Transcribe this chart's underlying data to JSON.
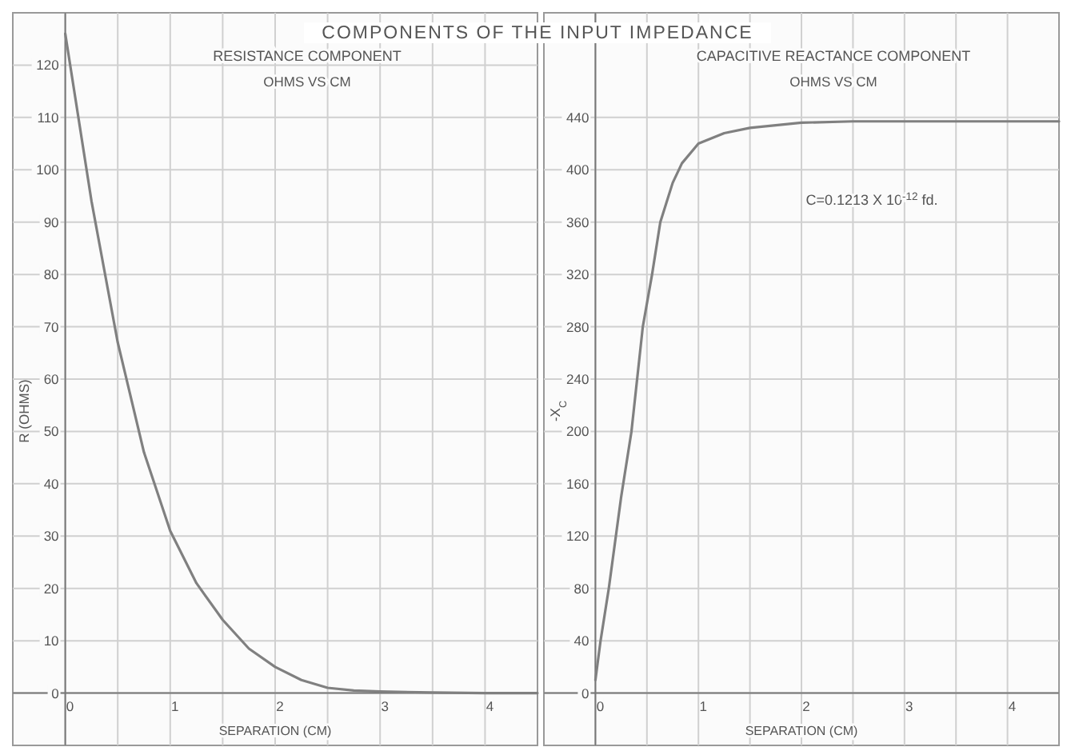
{
  "chart_data": [
    {
      "type": "line",
      "title": "RESISTANCE COMPONENT",
      "subtitle": "OHMS VS CM",
      "xlabel": "SEPARATION (CM)",
      "ylabel": "R (OHMS)",
      "annotations": [
        "COMPONENTS OF THE INPUT IMPEDANCE"
      ],
      "x": [
        0,
        0.25,
        0.5,
        0.75,
        1,
        1.25,
        1.5,
        1.75,
        2,
        2.25,
        2.5,
        2.75,
        3,
        3.5,
        4,
        4.5
      ],
      "series": [
        {
          "color": "#808080",
          "values": [
            126,
            94,
            67,
            46,
            31,
            21,
            14,
            8.5,
            5,
            2.5,
            1,
            0.5,
            0.3,
            0.1,
            0,
            0
          ]
        }
      ],
      "xlim": [
        -0.5,
        4.5
      ],
      "xticks": [
        0,
        {
          "value": 0.5,
          "label": null
        },
        1,
        {
          "value": 1.5,
          "label": null
        },
        2,
        {
          "value": 2.5,
          "label": null
        },
        3,
        {
          "value": 3.5,
          "label": null
        },
        4
      ],
      "ylim": [
        -10,
        130
      ],
      "yticks": [
        0,
        10,
        20,
        30,
        40,
        50,
        60,
        70,
        80,
        90,
        100,
        110,
        120
      ],
      "grid": true,
      "marker": "none",
      "line_style": "solid"
    },
    {
      "type": "line",
      "title": "CAPACITIVE REACTANCE COMPONENT",
      "subtitle": "OHMS VS CM",
      "xlabel": "SEPARATION (CM)",
      "ylabel": "-X$_{C}$",
      "annotations": [
        "C=0.1213 X 10$^{-12}$ fd."
      ],
      "x": [
        0,
        0.05,
        0.13,
        0.25,
        0.35,
        0.46,
        0.55,
        0.63,
        0.75,
        0.84,
        1,
        1.25,
        1.5,
        2,
        2.5,
        3,
        4,
        4.5
      ],
      "series": [
        {
          "color": "#808080",
          "values": [
            10,
            40,
            80,
            150,
            200,
            280,
            320,
            360,
            390,
            405,
            420,
            428,
            432,
            436,
            437,
            437,
            437,
            437
          ]
        }
      ],
      "xlim": [
        -0.5,
        4.5
      ],
      "xticks": [
        0,
        {
          "value": 0.5,
          "label": null
        },
        1,
        {
          "value": 1.5,
          "label": null
        },
        2,
        {
          "value": 2.5,
          "label": null
        },
        3,
        {
          "value": 3.5,
          "label": null
        },
        4
      ],
      "ylim": [
        -40,
        520
      ],
      "yticks": [
        0,
        40,
        80,
        120,
        160,
        200,
        240,
        280,
        320,
        360,
        400,
        440
      ],
      "grid": true,
      "marker": "none",
      "line_style": "solid"
    }
  ]
}
